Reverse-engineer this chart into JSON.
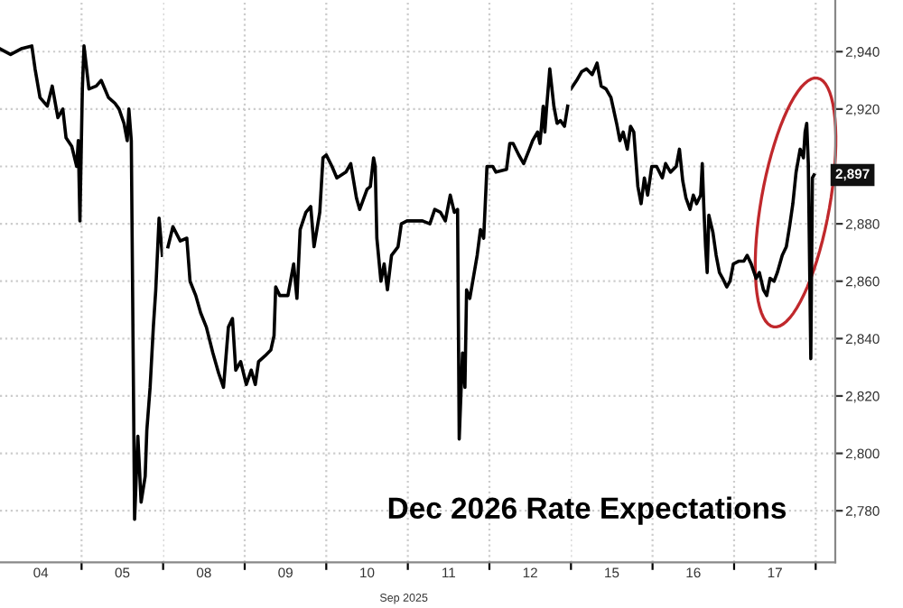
{
  "chart_data": [
    {
      "type": "line",
      "tick_labels": "x",
      "series": [
        {
          "color": "#000000",
          "x": [
            "2025-09-04T00:00",
            "2025-09-04T03:07",
            "2025-09-04T06:14",
            "2025-09-04T09:22",
            "2025-09-04T10:19",
            "2025-09-04T11:46",
            "2025-09-04T13:55",
            "2025-09-04T15:22",
            "2025-09-04T17:02",
            "2025-09-04T18:29",
            "2025-09-04T19:26",
            "2025-09-04T21:07",
            "2025-09-04T22:34",
            "2025-09-04T23:02",
            "2025-09-04T23:31",
            "2025-09-05T00:14",
            "2025-09-05T00:43",
            "2025-09-05T02:10",
            "2025-09-05T04:19",
            "2025-09-05T05:46",
            "2025-09-05T07:55",
            "2025-09-05T09:50",
            "2025-09-05T11:02",
            "2025-09-05T12:29",
            "2025-09-05T13:26",
            "2025-09-05T13:55",
            "2025-09-05T14:38",
            "2025-09-05T15:36",
            "2025-09-05T16:34",
            "2025-09-05T17:31",
            "2025-09-05T18:43",
            "2025-09-05T19:12",
            "2025-09-05T20:10",
            "2025-09-05T21:07",
            "2025-09-05T21:50",
            "2025-09-05T22:48",
            "2025-09-05T23:46"
          ],
          "values": [
            2941,
            2939,
            2941,
            2942,
            2934,
            2924,
            2921,
            2928,
            2917,
            2920,
            2910,
            2907,
            2900,
            2909,
            2881,
            2927,
            2942,
            2927,
            2928,
            2930,
            2924,
            2922,
            2920,
            2915,
            2909,
            2920,
            2909,
            2777,
            2806,
            2783,
            2792,
            2808,
            2823,
            2844,
            2857,
            2882,
            2869
          ]
        }
      ],
      "xlim": [
        "2025-09-04T00:00",
        "2025-09-06T00:00"
      ],
      "ylim": [
        2762,
        2958
      ],
      "xticks": [
        {
          "value": "2025-09-04T12:00",
          "label": "04"
        },
        {
          "value": "2025-09-05T00:00",
          "label": null
        },
        {
          "value": "2025-09-05T12:00",
          "label": "05"
        }
      ],
      "yticks": [
        2780,
        2800,
        2820,
        2840,
        2860,
        2880,
        2900,
        2920,
        2940
      ],
      "grid": true
    },
    {
      "type": "line",
      "tick_labels": "x",
      "title": "Dec 2026 Rate Expectations",
      "xlabel": "Sep 2025",
      "series": [
        {
          "color": "#000000",
          "x": [
            "2025-09-08T01:26",
            "2025-09-08T02:53",
            "2025-09-08T05:02",
            "2025-09-08T06:58",
            "2025-09-08T07:55",
            "2025-09-08T09:36",
            "2025-09-08T11:02",
            "2025-09-08T12:43",
            "2025-09-08T14:38",
            "2025-09-08T16:19",
            "2025-09-08T17:46",
            "2025-09-08T19:12",
            "2025-09-08T20:24",
            "2025-09-08T21:22",
            "2025-09-08T22:48",
            "2025-09-09T00:29",
            "2025-09-09T01:55",
            "2025-09-09T03:07",
            "2025-09-09T04:05",
            "2025-09-09T06:00",
            "2025-09-09T07:41",
            "2025-09-09T08:38",
            "2025-09-09T09:07",
            "2025-09-09T10:19",
            "2025-09-09T12:43",
            "2025-09-09T14:24",
            "2025-09-09T15:22",
            "2025-09-09T16:19",
            "2025-09-09T18:00",
            "2025-09-09T19:26",
            "2025-09-09T20:24",
            "2025-09-09T22:05",
            "2025-09-09T23:02",
            "2025-09-10T00:00",
            "2025-09-10T01:41",
            "2025-09-10T03:07",
            "2025-09-10T05:46",
            "2025-09-10T07:12",
            "2025-09-10T08:53",
            "2025-09-10T09:50",
            "2025-09-10T12:00",
            "2025-09-10T12:58",
            "2025-09-10T13:55",
            "2025-09-10T14:24",
            "2025-09-10T14:53",
            "2025-09-10T16:05",
            "2025-09-10T17:02",
            "2025-09-10T18:00",
            "2025-09-10T19:12",
            "2025-09-10T21:07",
            "2025-09-10T22:05",
            "2025-09-10T23:46",
            "2025-09-11T02:24",
            "2025-09-11T04:19",
            "2025-09-11T06:29",
            "2025-09-11T07:55",
            "2025-09-11T09:36",
            "2025-09-11T11:02",
            "2025-09-11T12:29",
            "2025-09-11T13:41",
            "2025-09-11T14:38",
            "2025-09-11T15:07",
            "2025-09-11T16:05",
            "2025-09-11T16:48",
            "2025-09-11T17:17",
            "2025-09-11T18:14",
            "2025-09-11T20:24",
            "2025-09-11T21:22",
            "2025-09-11T22:19",
            "2025-09-11T23:17",
            "2025-09-12T00:58",
            "2025-09-12T01:55",
            "2025-09-12T05:02",
            "2025-09-12T06:00",
            "2025-09-12T06:58",
            "2025-09-12T08:38",
            "2025-09-12T10:05",
            "2025-09-12T11:46",
            "2025-09-12T12:43",
            "2025-09-12T14:10",
            "2025-09-12T14:53",
            "2025-09-12T15:50",
            "2025-09-12T16:19",
            "2025-09-12T16:48",
            "2025-09-12T17:46",
            "2025-09-12T18:58",
            "2025-09-12T19:55",
            "2025-09-12T20:53",
            "2025-09-12T22:05",
            "2025-09-12T23:02"
          ],
          "values": [
            2872,
            2879,
            2874,
            2875,
            2860,
            2855,
            2849,
            2844,
            2835,
            2828,
            2823,
            2844,
            2847,
            2829,
            2832,
            2824,
            2829,
            2824,
            2832,
            2834,
            2836,
            2841,
            2858,
            2855,
            2855,
            2866,
            2854,
            2878,
            2884,
            2886,
            2872,
            2884,
            2903,
            2904,
            2900,
            2896,
            2898,
            2901,
            2889,
            2885,
            2892,
            2893,
            2903,
            2900,
            2875,
            2860,
            2866,
            2857,
            2869,
            2872,
            2880,
            2881,
            2881,
            2881,
            2880,
            2885,
            2884,
            2881,
            2890,
            2884,
            2885,
            2805,
            2835,
            2823,
            2857,
            2854,
            2869,
            2878,
            2875,
            2900,
            2900,
            2898,
            2899,
            2908,
            2908,
            2904,
            2901,
            2906,
            2909,
            2912,
            2908,
            2921,
            2912,
            2920,
            2934,
            2921,
            2915,
            2916,
            2914,
            2921
          ]
        }
      ],
      "xlim": [
        "2025-09-08T00:00",
        "2025-09-13T00:00"
      ],
      "ylim": [
        2762,
        2958
      ],
      "xticks": [
        {
          "value": "2025-09-08T00:00",
          "label": null
        },
        {
          "value": "2025-09-08T12:00",
          "label": "08"
        },
        {
          "value": "2025-09-09T00:00",
          "label": null
        },
        {
          "value": "2025-09-09T12:00",
          "label": "09"
        },
        {
          "value": "2025-09-10T00:00",
          "label": null
        },
        {
          "value": "2025-09-10T12:00",
          "label": "10"
        },
        {
          "value": "2025-09-11T00:00",
          "label": null
        },
        {
          "value": "2025-09-11T12:00",
          "label": "11"
        },
        {
          "value": "2025-09-12T00:00",
          "label": null
        },
        {
          "value": "2025-09-12T12:00",
          "label": "12"
        }
      ],
      "yticks": [
        2780,
        2800,
        2820,
        2840,
        2860,
        2880,
        2900,
        2920,
        2940
      ],
      "grid": true
    },
    {
      "type": "line",
      "series": [
        {
          "color": "#000000",
          "x": [
            "2025-09-15T00:00",
            "2025-09-15T01:41",
            "2025-09-15T03:07",
            "2025-09-15T04:34",
            "2025-09-15T06:14",
            "2025-09-15T07:41",
            "2025-09-15T08:53",
            "2025-09-15T10:19",
            "2025-09-15T11:46",
            "2025-09-15T13:26",
            "2025-09-15T14:24",
            "2025-09-15T15:22",
            "2025-09-15T16:34",
            "2025-09-15T17:31",
            "2025-09-15T18:29",
            "2025-09-15T19:41",
            "2025-09-15T20:38",
            "2025-09-15T21:36",
            "2025-09-15T22:34",
            "2025-09-15T23:46",
            "2025-09-16T01:12",
            "2025-09-16T02:53",
            "2025-09-16T03:50",
            "2025-09-16T05:17",
            "2025-09-16T06:58",
            "2025-09-16T07:55",
            "2025-09-16T08:53",
            "2025-09-16T09:50",
            "2025-09-16T11:02",
            "2025-09-16T12:00",
            "2025-09-16T12:58",
            "2025-09-16T14:10",
            "2025-09-16T14:38",
            "2025-09-16T15:07",
            "2025-09-16T15:36",
            "2025-09-16T16:05",
            "2025-09-16T16:34",
            "2025-09-16T17:46",
            "2025-09-16T18:43",
            "2025-09-16T19:41",
            "2025-09-16T20:38",
            "2025-09-16T21:50",
            "2025-09-16T22:48",
            "2025-09-16T23:46",
            "2025-09-17T01:26",
            "2025-09-17T02:53",
            "2025-09-17T03:50",
            "2025-09-17T05:02",
            "2025-09-17T06:29",
            "2025-09-17T07:26",
            "2025-09-17T08:38",
            "2025-09-17T09:36",
            "2025-09-17T10:34",
            "2025-09-17T11:46",
            "2025-09-17T12:43",
            "2025-09-17T14:10",
            "2025-09-17T15:22",
            "2025-09-17T16:19",
            "2025-09-17T17:17",
            "2025-09-17T18:14",
            "2025-09-17T19:26",
            "2025-09-17T20:24",
            "2025-09-17T20:53",
            "2025-09-17T21:22",
            "2025-09-17T21:50",
            "2025-09-17T22:34",
            "2025-09-17T23:02",
            "2025-09-17T23:31"
          ],
          "values": [
            2927,
            2930,
            2933,
            2934,
            2932,
            2936,
            2928,
            2927,
            2924,
            2915,
            2909,
            2912,
            2906,
            2914,
            2912,
            2893,
            2887,
            2896,
            2890,
            2900,
            2900,
            2896,
            2901,
            2898,
            2900,
            2906,
            2895,
            2889,
            2885,
            2890,
            2887,
            2890,
            2901,
            2885,
            2872,
            2863,
            2883,
            2877,
            2869,
            2863,
            2861,
            2858,
            2860,
            2866,
            2867,
            2867,
            2869,
            2866,
            2861,
            2863,
            2857,
            2855,
            2861,
            2860,
            2863,
            2869,
            2872,
            2879,
            2887,
            2898,
            2906,
            2903,
            2912,
            2915,
            2901,
            2833,
            2896,
            2897
          ]
        }
      ],
      "xlim": [
        "2025-09-15T00:00",
        "2025-09-18T05:46"
      ],
      "ylim": [
        2762,
        2958
      ],
      "xticks": [
        {
          "value": "2025-09-15T00:00",
          "label": null
        },
        {
          "value": "2025-09-15T12:00",
          "label": "15"
        },
        {
          "value": "2025-09-16T00:00",
          "label": null
        },
        {
          "value": "2025-09-16T12:00",
          "label": "16"
        },
        {
          "value": "2025-09-17T00:00",
          "label": null
        },
        {
          "value": "2025-09-17T12:00",
          "label": "17"
        },
        {
          "value": "2025-09-18T00:00",
          "label": null
        }
      ],
      "yticks": [
        {
          "value": 2780,
          "label": "2,780"
        },
        {
          "value": 2800,
          "label": "2,800"
        },
        {
          "value": 2820,
          "label": "2,820"
        },
        {
          "value": 2840,
          "label": "2,840"
        },
        {
          "value": 2860,
          "label": "2,860"
        },
        {
          "value": 2880,
          "label": "2,880"
        },
        {
          "value": 2900,
          "label": null
        },
        {
          "value": 2920,
          "label": "2,920"
        },
        {
          "value": 2940,
          "label": "2,940"
        }
      ],
      "grid": true,
      "annotations": [
        {
          "text": "2,897",
          "y": 2897
        }
      ]
    }
  ]
}
